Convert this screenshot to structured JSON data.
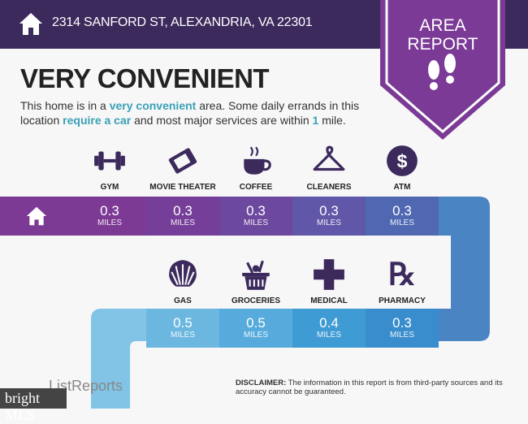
{
  "header": {
    "address": "2314 SANFORD ST, ALEXANDRIA, VA 22301",
    "badge_line1": "AREA",
    "badge_line2": "REPORT"
  },
  "summary": {
    "title": "VERY CONVENIENT",
    "desc_1": "This home is in a ",
    "desc_hl1": "very convenient",
    "desc_2": " area. Some daily errands in this location ",
    "desc_hl2": "require a car",
    "desc_3": " and most major services are within ",
    "desc_hl3": "1",
    "desc_4": " mile."
  },
  "colors": {
    "header": "#3c2a5d",
    "badge": "#7b3a96",
    "highlight": "#3aa0b5",
    "icon": "#3c2a5d"
  },
  "row1": [
    {
      "label": "GYM",
      "icon": "dumbbell-icon",
      "value": "0.3",
      "unit": "MILES"
    },
    {
      "label": "MOVIE THEATER",
      "icon": "ticket-icon",
      "value": "0.3",
      "unit": "MILES"
    },
    {
      "label": "COFFEE",
      "icon": "coffee-cup-icon",
      "value": "0.3",
      "unit": "MILES"
    },
    {
      "label": "CLEANERS",
      "icon": "hanger-icon",
      "value": "0.3",
      "unit": "MILES"
    },
    {
      "label": "ATM",
      "icon": "dollar-icon",
      "value": "0.3",
      "unit": "MILES"
    }
  ],
  "row2": [
    {
      "label": "GAS",
      "icon": "shell-icon",
      "value": "0.5",
      "unit": "MILES"
    },
    {
      "label": "GROCERIES",
      "icon": "basket-icon",
      "value": "0.5",
      "unit": "MILES"
    },
    {
      "label": "MEDICAL",
      "icon": "cross-icon",
      "value": "0.4",
      "unit": "MILES"
    },
    {
      "label": "PHARMACY",
      "icon": "rx-icon",
      "value": "0.3",
      "unit": "MILES"
    }
  ],
  "footer": {
    "disclaimer_label": "DISCLAIMER:",
    "disclaimer": " The information in this report is from third-party sources and its accuracy cannot be guaranteed.",
    "logo": "ListReports",
    "mls_logo": "bright MLS"
  }
}
